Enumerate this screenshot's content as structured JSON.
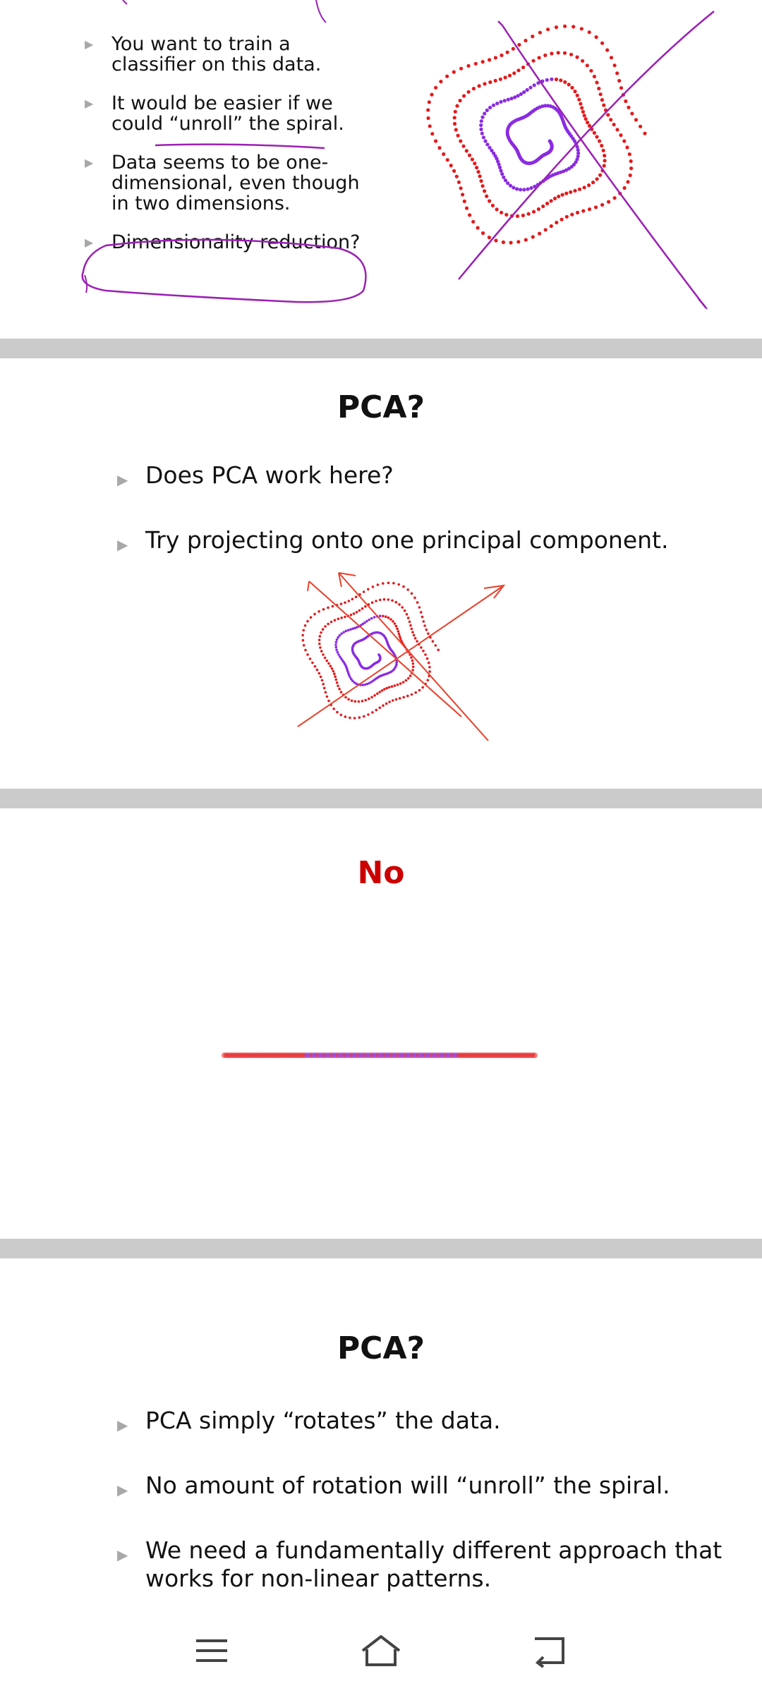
{
  "slide1": {
    "bullets": [
      "You want to train a classifier on this data.",
      "It would be easier if we could “unroll” the spiral.",
      "Data seems to be one-dimensional, even though in two dimensions.",
      "Dimensionality reduction?"
    ]
  },
  "slide2": {
    "title": "PCA?",
    "bullets": [
      "Does PCA work here?",
      "Try projecting onto one principal component."
    ]
  },
  "slide3": {
    "title": "No",
    "title_color": "#cc0000"
  },
  "slide4": {
    "title": "PCA?",
    "bullets": [
      "PCA simply “rotates” the data.",
      "No amount of rotation will “unroll” the spiral.",
      "We need a fundamentally different approach that works for non-linear patterns."
    ]
  },
  "colors": {
    "outer_dots": "#e41a1c",
    "inner_dots": "#8a2be2",
    "ink_annotation": "#9b1fb5",
    "pca_arrows": "#e8402a",
    "separator": "#cbcbcb"
  },
  "navbar": {
    "icons": [
      "menu-icon",
      "home-icon",
      "back-icon"
    ]
  }
}
